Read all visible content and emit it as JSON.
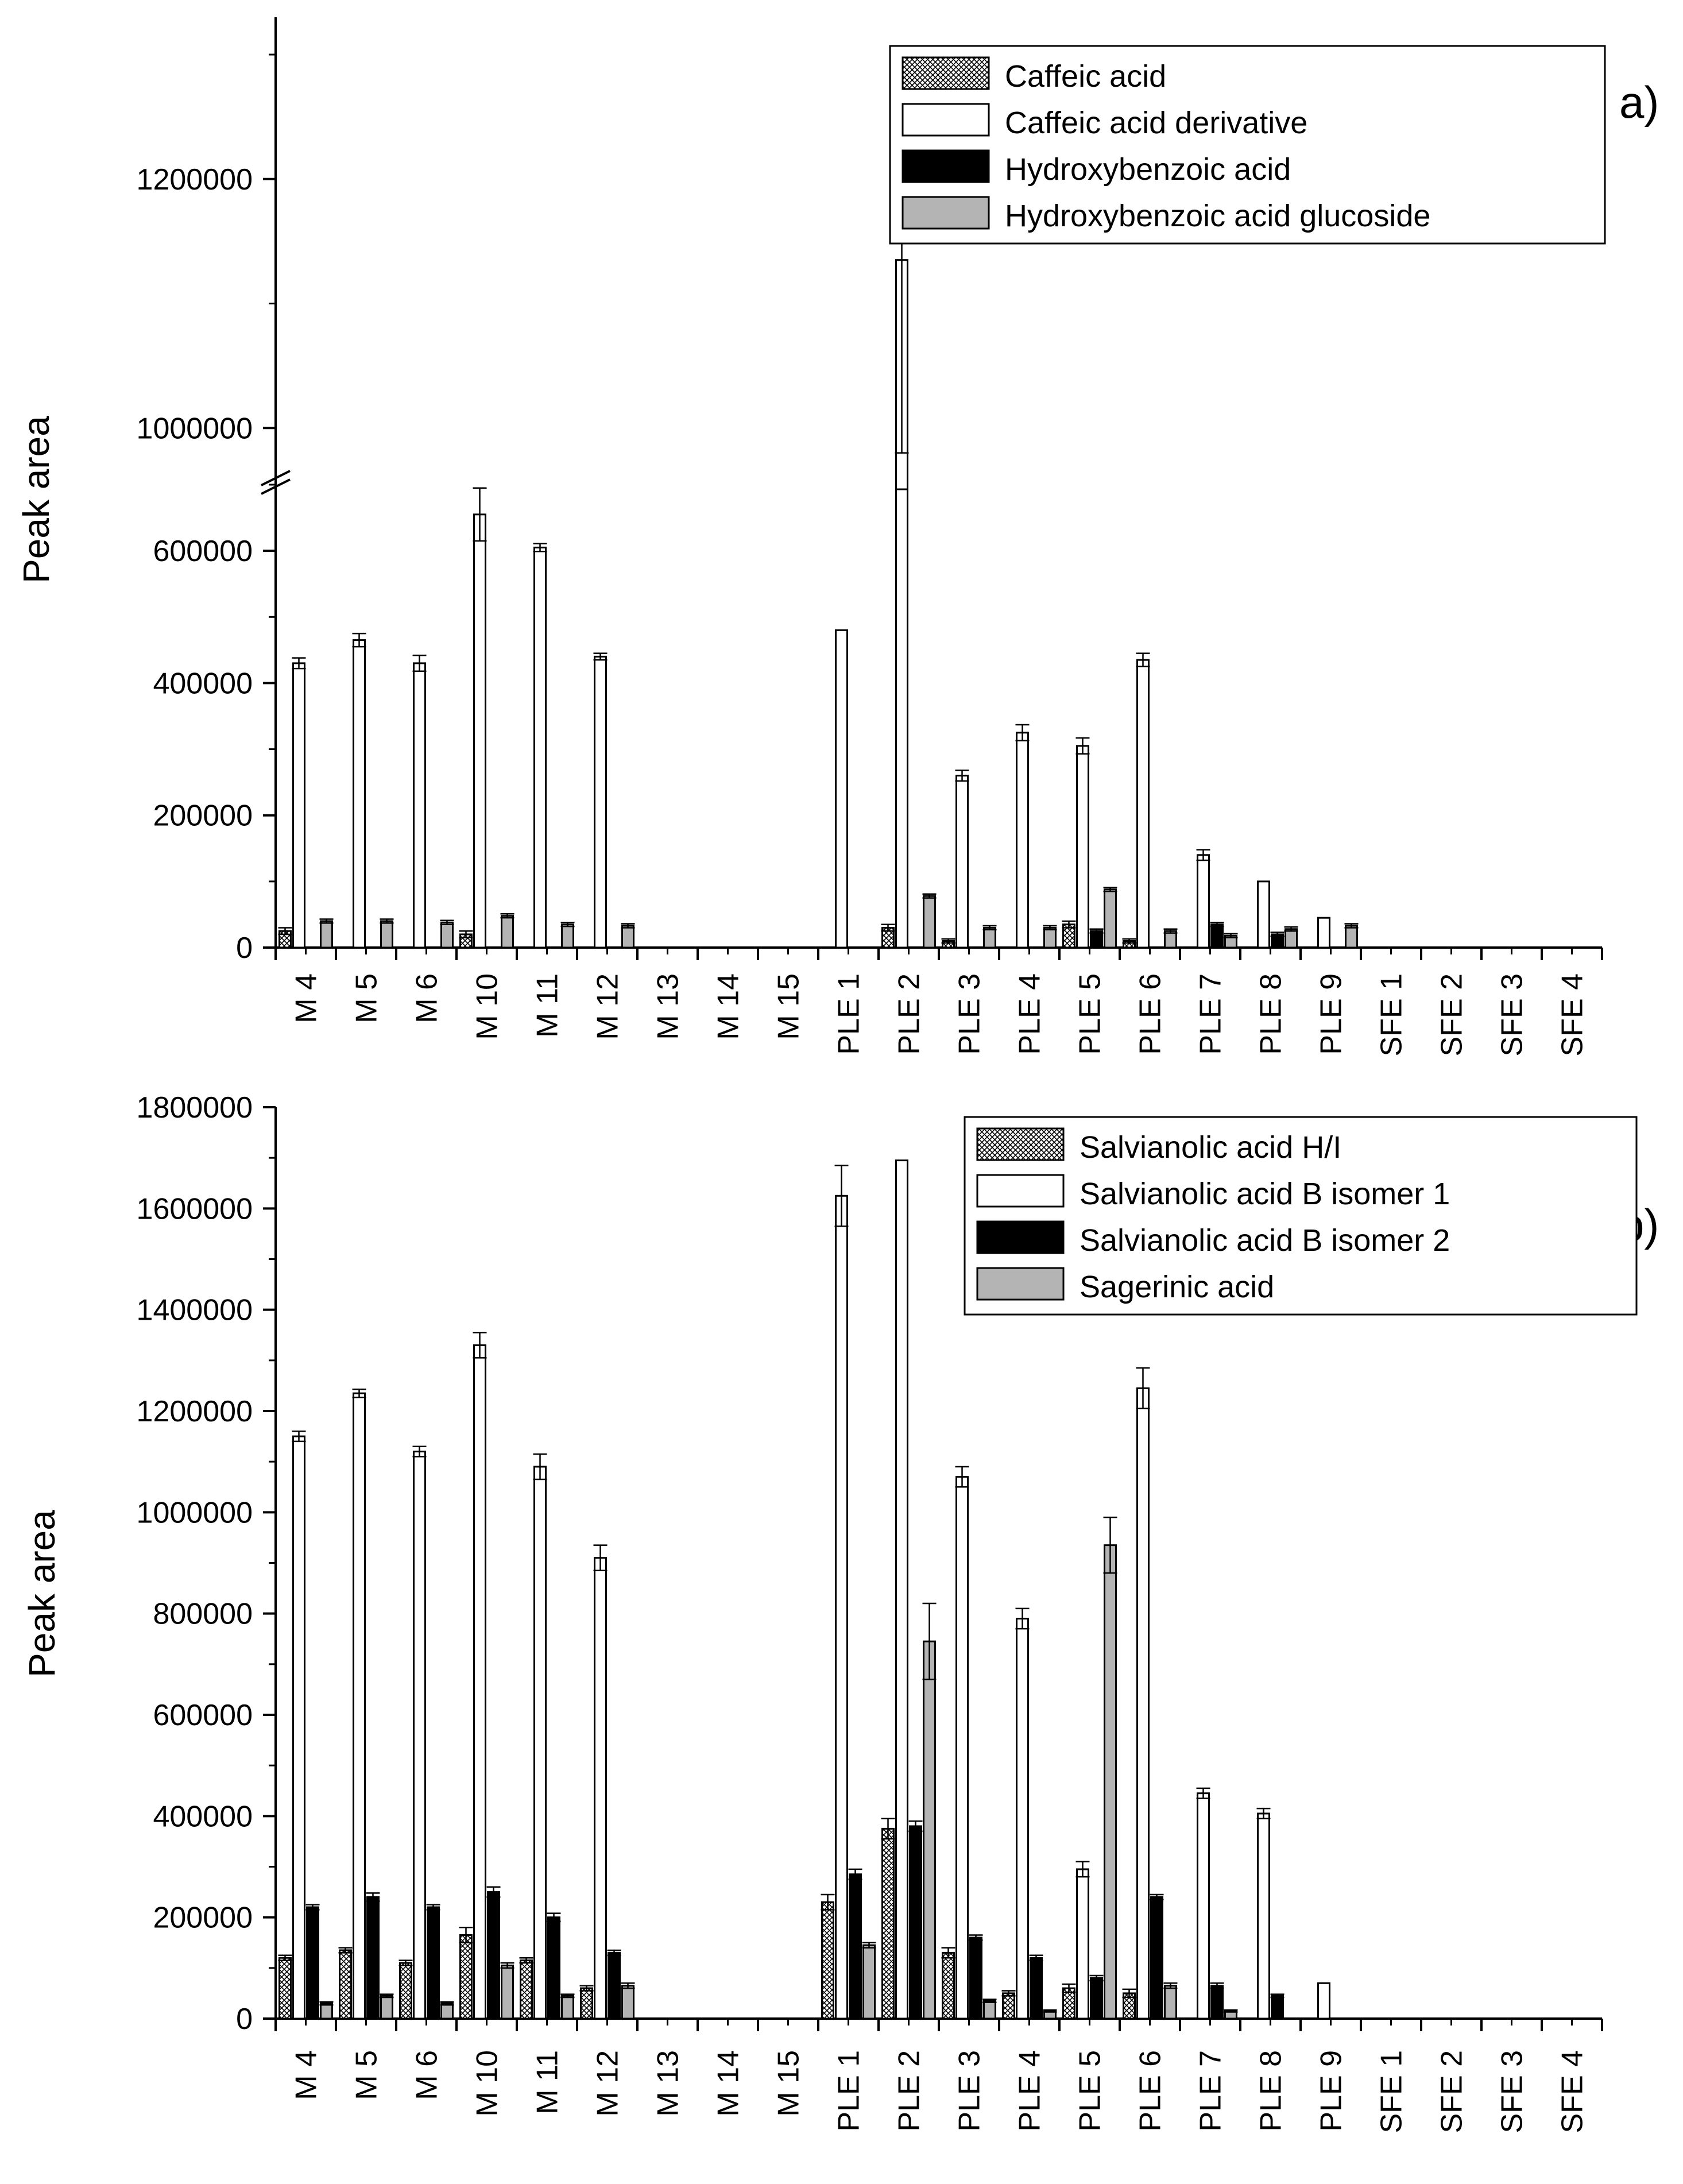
{
  "chart_data": [
    {
      "type": "bar",
      "panel_label": "a)",
      "ylabel": "Peak area",
      "xlabel": "",
      "axis_break": {
        "lower_max": 700000,
        "upper_min": 960000,
        "upper_max": 1330000
      },
      "y_ticks_lower": [
        0,
        200000,
        400000,
        600000
      ],
      "y_ticks_upper": [
        1000000,
        1200000
      ],
      "y_tick_labels_lower": [
        "0",
        "200000",
        "400000",
        "600000"
      ],
      "y_tick_labels_upper": [
        "1000000",
        "1200000"
      ],
      "grid": false,
      "legend_position": "top-right",
      "categories": [
        "M 4",
        "M 5",
        "M 6",
        "M 10",
        "M 11",
        "M 12",
        "M 13",
        "M 14",
        "M 15",
        "PLE 1",
        "PLE 2",
        "PLE 3",
        "PLE 4",
        "PLE 5",
        "PLE 6",
        "PLE 7",
        "PLE 8",
        "PLE 9",
        "SFE 1",
        "SFE 2",
        "SFE 3",
        "SFE 4"
      ],
      "series": [
        {
          "name": "Caffeic acid",
          "pattern": "crosshatch",
          "values": [
            25000,
            0,
            0,
            20000,
            0,
            0,
            0,
            0,
            0,
            0,
            30000,
            10000,
            0,
            35000,
            10000,
            0,
            0,
            0,
            0,
            0,
            0,
            0
          ],
          "errors": [
            5000,
            0,
            0,
            5000,
            0,
            0,
            0,
            0,
            0,
            0,
            5000,
            3000,
            0,
            5000,
            3000,
            0,
            0,
            0,
            0,
            0,
            0,
            0
          ]
        },
        {
          "name": "Caffeic acid derivative",
          "pattern": "white",
          "values": [
            430000,
            465000,
            430000,
            655000,
            605000,
            440000,
            0,
            0,
            0,
            480000,
            1135000,
            260000,
            325000,
            305000,
            435000,
            140000,
            100000,
            45000,
            0,
            0,
            0,
            0
          ],
          "errors": [
            8000,
            10000,
            12000,
            40000,
            6000,
            5000,
            0,
            0,
            0,
            0,
            155000,
            8000,
            12000,
            12000,
            10000,
            8000,
            0,
            0,
            0,
            0,
            0,
            0
          ]
        },
        {
          "name": "Hydroxybenzoic acid",
          "pattern": "black",
          "values": [
            0,
            0,
            0,
            0,
            0,
            0,
            0,
            0,
            0,
            0,
            0,
            0,
            0,
            25000,
            0,
            35000,
            20000,
            0,
            0,
            0,
            0,
            0
          ],
          "errors": [
            0,
            0,
            0,
            0,
            0,
            0,
            0,
            0,
            0,
            0,
            0,
            0,
            0,
            3000,
            0,
            3000,
            3000,
            0,
            0,
            0,
            0,
            0
          ]
        },
        {
          "name": "Hydroxybenzoic acid glucoside",
          "pattern": "gray",
          "values": [
            40000,
            40000,
            38000,
            48000,
            35000,
            33000,
            0,
            0,
            0,
            0,
            78000,
            30000,
            30000,
            88000,
            25000,
            18000,
            28000,
            33000,
            0,
            0,
            0,
            0
          ],
          "errors": [
            3000,
            3000,
            3000,
            3000,
            3000,
            3000,
            0,
            0,
            0,
            0,
            3000,
            3000,
            3000,
            3000,
            3000,
            3000,
            3000,
            3000,
            0,
            0,
            0,
            0
          ]
        }
      ]
    },
    {
      "type": "bar",
      "panel_label": "b)",
      "ylabel": "Peak area",
      "xlabel": "",
      "ylim": [
        0,
        1800000
      ],
      "y_ticks": [
        0,
        200000,
        400000,
        600000,
        800000,
        1000000,
        1200000,
        1400000,
        1600000,
        1800000
      ],
      "y_tick_labels": [
        "0",
        "200000",
        "400000",
        "600000",
        "800000",
        "1000000",
        "1200000",
        "1400000",
        "1600000",
        "1800000"
      ],
      "grid": false,
      "legend_position": "top-right",
      "categories": [
        "M 4",
        "M 5",
        "M 6",
        "M 10",
        "M 11",
        "M 12",
        "M 13",
        "M 14",
        "M 15",
        "PLE 1",
        "PLE 2",
        "PLE 3",
        "PLE 4",
        "PLE 5",
        "PLE 6",
        "PLE 7",
        "PLE 8",
        "PLE 9",
        "SFE 1",
        "SFE 2",
        "SFE 3",
        "SFE 4"
      ],
      "series": [
        {
          "name": "Salvianolic acid H/I",
          "pattern": "crosshatch",
          "values": [
            120000,
            135000,
            110000,
            165000,
            115000,
            60000,
            0,
            0,
            0,
            230000,
            375000,
            130000,
            50000,
            60000,
            50000,
            0,
            0,
            0,
            0,
            0,
            0,
            0
          ],
          "errors": [
            5000,
            5000,
            5000,
            15000,
            5000,
            5000,
            0,
            0,
            0,
            15000,
            20000,
            10000,
            5000,
            8000,
            8000,
            0,
            0,
            0,
            0,
            0,
            0,
            0
          ]
        },
        {
          "name": "Salvianolic acid B isomer 1",
          "pattern": "white",
          "values": [
            1150000,
            1235000,
            1120000,
            1330000,
            1090000,
            910000,
            0,
            0,
            0,
            1625000,
            1695000,
            1070000,
            790000,
            295000,
            1245000,
            445000,
            405000,
            70000,
            0,
            0,
            0,
            0
          ],
          "errors": [
            10000,
            8000,
            10000,
            25000,
            25000,
            25000,
            0,
            0,
            0,
            60000,
            0,
            20000,
            20000,
            15000,
            40000,
            10000,
            10000,
            0,
            0,
            0,
            0,
            0
          ]
        },
        {
          "name": "Salvianolic acid B isomer 2",
          "pattern": "black",
          "values": [
            220000,
            240000,
            220000,
            250000,
            200000,
            130000,
            0,
            0,
            0,
            285000,
            380000,
            160000,
            120000,
            80000,
            240000,
            65000,
            45000,
            0,
            0,
            0,
            0,
            0
          ],
          "errors": [
            5000,
            8000,
            5000,
            10000,
            8000,
            5000,
            0,
            0,
            0,
            10000,
            10000,
            5000,
            5000,
            5000,
            5000,
            5000,
            3000,
            0,
            0,
            0,
            0,
            0
          ]
        },
        {
          "name": "Sagerinic acid",
          "pattern": "gray",
          "values": [
            30000,
            45000,
            30000,
            105000,
            45000,
            65000,
            0,
            0,
            0,
            145000,
            745000,
            35000,
            15000,
            935000,
            65000,
            15000,
            0,
            0,
            0,
            0,
            0,
            0
          ],
          "errors": [
            3000,
            3000,
            3000,
            5000,
            3000,
            5000,
            0,
            0,
            0,
            5000,
            75000,
            3000,
            2000,
            55000,
            5000,
            2000,
            0,
            0,
            0,
            0,
            0,
            0
          ]
        }
      ]
    }
  ]
}
